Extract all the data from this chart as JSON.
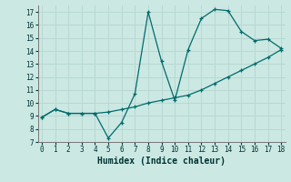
{
  "title": "",
  "xlabel": "Humidex (Indice chaleur)",
  "background_color": "#cbe8e3",
  "line_color": "#006b6b",
  "grid_color": "#b8d8d2",
  "line1_x": [
    0,
    1,
    2,
    3,
    4,
    5,
    6,
    7,
    8,
    9,
    10,
    11,
    12,
    13,
    14,
    15,
    16,
    17,
    18
  ],
  "line1_y": [
    8.9,
    9.5,
    9.2,
    9.2,
    9.2,
    7.3,
    8.5,
    10.7,
    17.0,
    13.2,
    10.2,
    14.1,
    16.5,
    17.2,
    17.1,
    15.5,
    14.8,
    14.9,
    14.2
  ],
  "line2_x": [
    0,
    1,
    2,
    3,
    4,
    5,
    6,
    7,
    8,
    9,
    10,
    11,
    12,
    13,
    14,
    15,
    16,
    17,
    18
  ],
  "line2_y": [
    8.9,
    9.5,
    9.2,
    9.2,
    9.2,
    9.3,
    9.5,
    9.7,
    10.0,
    10.2,
    10.4,
    10.6,
    11.0,
    11.5,
    12.0,
    12.5,
    13.0,
    13.5,
    14.1
  ],
  "xlim": [
    -0.3,
    18.3
  ],
  "ylim": [
    7,
    17.5
  ],
  "xticks": [
    0,
    1,
    2,
    3,
    4,
    5,
    6,
    7,
    8,
    9,
    10,
    11,
    12,
    13,
    14,
    15,
    16,
    17,
    18
  ],
  "yticks": [
    7,
    8,
    9,
    10,
    11,
    12,
    13,
    14,
    15,
    16,
    17
  ],
  "tick_fontsize": 5.5,
  "xlabel_fontsize": 7.0
}
